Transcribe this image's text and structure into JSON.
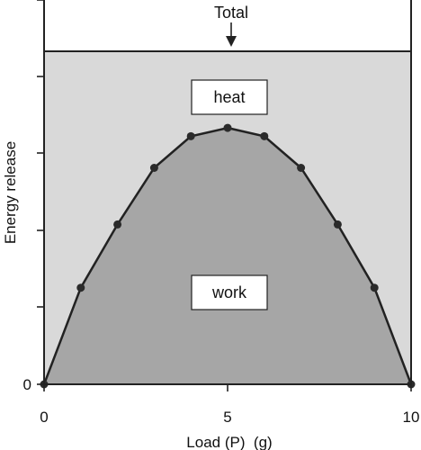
{
  "chart_data": {
    "type": "area",
    "xlabel": "Load (P)  (g)",
    "ylabel": "Energy release",
    "xlim": [
      0,
      10
    ],
    "x_ticks": [
      {
        "value": 0,
        "label": "0"
      },
      {
        "value": 5,
        "label": "5"
      },
      {
        "value": 10,
        "label": "10"
      }
    ],
    "y_ticks": [
      {
        "value": 0,
        "label": "0"
      }
    ],
    "total_level": 1.0,
    "series": [
      {
        "name": "work",
        "x": [
          0,
          1,
          2,
          3,
          4,
          5,
          6,
          7,
          8,
          9,
          10
        ],
        "y": [
          0,
          0.29,
          0.48,
          0.65,
          0.745,
          0.77,
          0.745,
          0.65,
          0.48,
          0.29,
          0
        ]
      }
    ],
    "region_labels": {
      "heat": "heat",
      "work": "work"
    },
    "annotation": "Total",
    "colors": {
      "heat_fill": "#d9d9d9",
      "work_fill": "#a6a6a6",
      "line": "#222222",
      "marker": "#2b2b2b"
    },
    "grid": false,
    "legend": "none"
  }
}
